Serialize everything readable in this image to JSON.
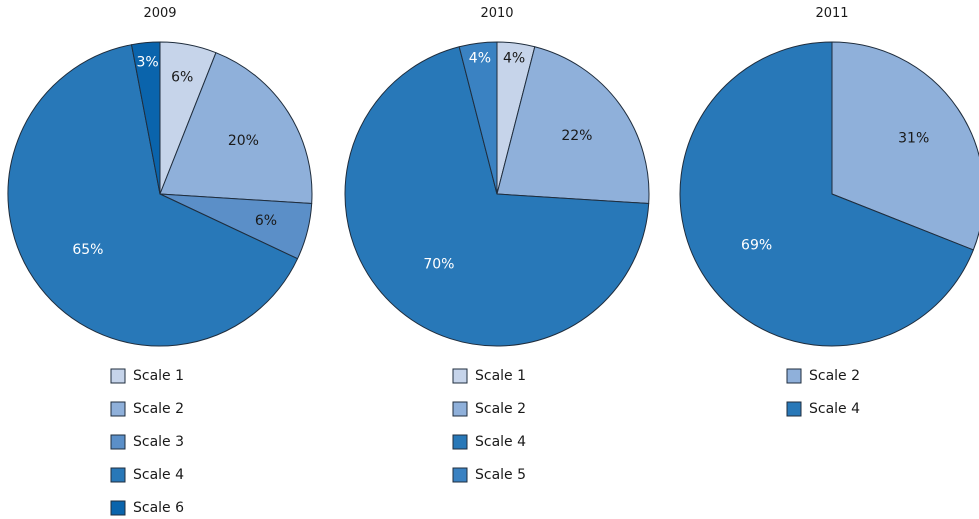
{
  "colors": {
    "Scale 1": "#c6d4ea",
    "Scale 2": "#8fb0da",
    "Scale 3": "#5b8fc8",
    "Scale 4": "#2878b8",
    "Scale 5": "#3a82c2",
    "Scale 6": "#0a64ac"
  },
  "chart_data": [
    {
      "type": "pie",
      "title": "2009",
      "labels": [
        "Scale 1",
        "Scale 2",
        "Scale 3",
        "Scale 4",
        "Scale 6"
      ],
      "values": [
        6,
        20,
        6,
        65,
        3
      ],
      "value_labels": [
        "6%",
        "20%",
        "6%",
        "65%",
        "3%"
      ],
      "legend": [
        "Scale 1",
        "Scale 2",
        "Scale 3",
        "Scale 4",
        "Scale 6"
      ],
      "legend_position": "below"
    },
    {
      "type": "pie",
      "title": "2010",
      "labels": [
        "Scale 1",
        "Scale 2",
        "Scale 4",
        "Scale 5"
      ],
      "values": [
        4,
        22,
        70,
        4
      ],
      "value_labels": [
        "4%",
        "22%",
        "70%",
        "4%"
      ],
      "legend": [
        "Scale 1",
        "Scale 2",
        "Scale 4",
        "Scale 5"
      ],
      "legend_position": "below"
    },
    {
      "type": "pie",
      "title": "2011",
      "labels": [
        "Scale 2",
        "Scale 4"
      ],
      "values": [
        31,
        69
      ],
      "value_labels": [
        "31%",
        "69%"
      ],
      "legend": [
        "Scale 2",
        "Scale 4"
      ],
      "legend_position": "below"
    }
  ]
}
